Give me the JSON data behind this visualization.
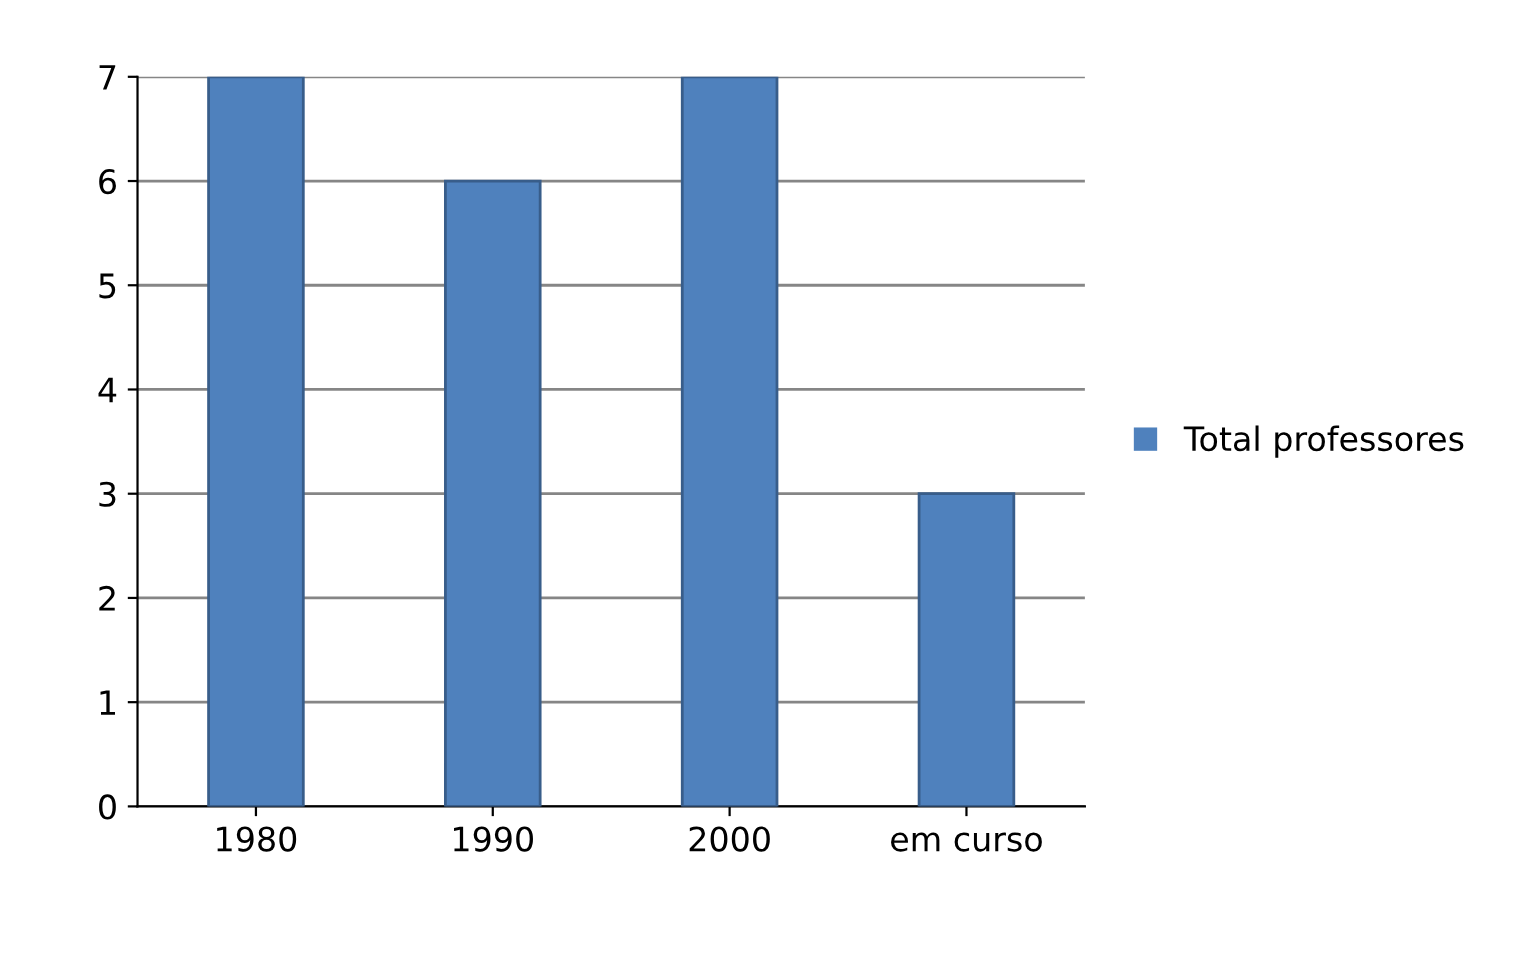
{
  "chart_data": {
    "type": "bar",
    "categories": [
      "1980",
      "1990",
      "2000",
      "em curso"
    ],
    "series": [
      {
        "name": "Total professores",
        "color": "#4f81bd",
        "values": [
          7,
          6,
          7,
          3
        ]
      }
    ],
    "ylim": [
      0,
      7
    ],
    "yticks": [
      0,
      1,
      2,
      3,
      4,
      5,
      6,
      7
    ],
    "grid": "y",
    "legend": "right"
  }
}
